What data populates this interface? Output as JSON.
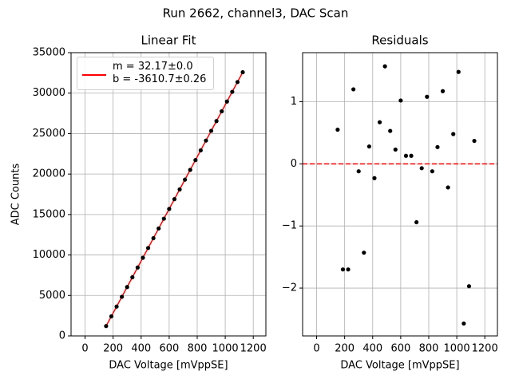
{
  "title": "Run 2662, channel3, DAC Scan",
  "chart_data": [
    {
      "type": "scatter",
      "title": "Linear Fit",
      "x_label": "DAC Voltage [mVppSE]",
      "y_label": "ADC Counts",
      "x": [
        150,
        187.5,
        225,
        262.5,
        300,
        337.5,
        375,
        412.5,
        450,
        487.5,
        525,
        562.5,
        600,
        637.5,
        675,
        712.5,
        750,
        787.5,
        825,
        862.5,
        900,
        937.5,
        975,
        1012.5,
        1050,
        1087.5,
        1125
      ],
      "values": [
        1215,
        2419,
        3626,
        4835,
        6040,
        7245,
        8453,
        9659,
        10866,
        12074,
        13279,
        14485,
        15692,
        16898,
        18104,
        19309,
        20517,
        21724,
        22929,
        24136,
        25343,
        26548,
        27756,
        28963,
        30165,
        31372,
        32581
      ],
      "color": "#000000",
      "fit": {
        "name": "m = 32.17±0.0\nb = -3610.7±0.26",
        "color": "#ff0000",
        "x": [
          150,
          1125
        ],
        "values": [
          1214.8,
          32580.55
        ]
      },
      "legend": "upper left",
      "xlim": [
        -100,
        1290
      ],
      "xticks": [
        0,
        200,
        400,
        600,
        800,
        1000,
        1200
      ],
      "ylim": [
        0,
        35000
      ],
      "yticks": [
        0,
        5000,
        10000,
        15000,
        20000,
        25000,
        30000,
        35000
      ],
      "grid": true
    },
    {
      "type": "scatter",
      "title": "Residuals",
      "x_label": "DAC Voltage [mVppSE]",
      "x": [
        150,
        187.5,
        225,
        262.5,
        300,
        337.5,
        375,
        412.5,
        450,
        487.5,
        525,
        562.5,
        600,
        637.5,
        675,
        712.5,
        750,
        787.5,
        825,
        862.5,
        900,
        937.5,
        975,
        1012.5,
        1050,
        1087.5,
        1125
      ],
      "values": [
        0.55,
        -1.7,
        -1.7,
        1.2,
        -0.12,
        -1.43,
        0.28,
        -0.23,
        0.67,
        1.57,
        0.53,
        0.23,
        1.02,
        0.13,
        0.13,
        -0.94,
        -0.07,
        1.08,
        -0.12,
        0.27,
        1.17,
        -0.38,
        0.48,
        1.48,
        -2.57,
        -1.97,
        0.37
      ],
      "color": "#000000",
      "hline": {
        "value": 0,
        "color": "#ff0000"
      },
      "xlim": [
        -100,
        1290
      ],
      "xticks": [
        0,
        200,
        400,
        600,
        800,
        1000,
        1200
      ],
      "ylim": [
        -2.77,
        1.79
      ],
      "yticks": [
        {
          "value": -2,
          "label": "−2"
        },
        {
          "value": -1,
          "label": "−1"
        },
        0,
        1
      ],
      "grid": true
    }
  ]
}
